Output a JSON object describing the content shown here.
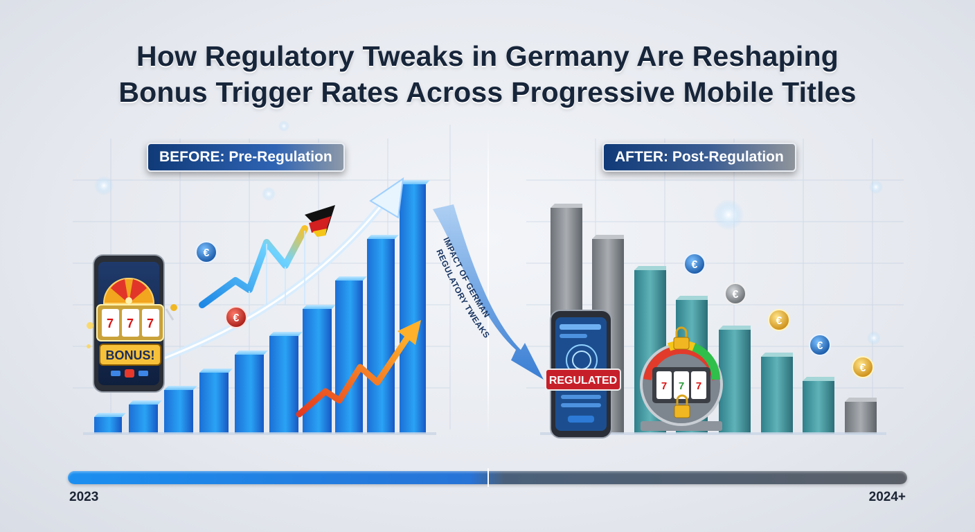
{
  "title": {
    "line1": "How Regulatory Tweaks in Germany Are Reshaping",
    "line2": "Bonus Trigger Rates Across Progressive Mobile Titles"
  },
  "before": {
    "badge": "BEFORE: Pre-Regulation",
    "bonus_label": "BONUS!"
  },
  "after": {
    "badge": "AFTER: Post-Regulation",
    "regulated_label": "REGULATED"
  },
  "arrow_text": {
    "line1": "IMPACT OF GERMAN",
    "line2": "REGULATORY TWEAKS"
  },
  "currency_symbol": "€",
  "timeline": {
    "start": "2023",
    "end": "2024+"
  },
  "colors": {
    "before_bars": "#1e8ff0",
    "after_bars_teal": "#3f9aa3",
    "after_bars_gray": "#8a8f95",
    "regulated_red": "#c71f2a",
    "title": "#17253a"
  }
}
